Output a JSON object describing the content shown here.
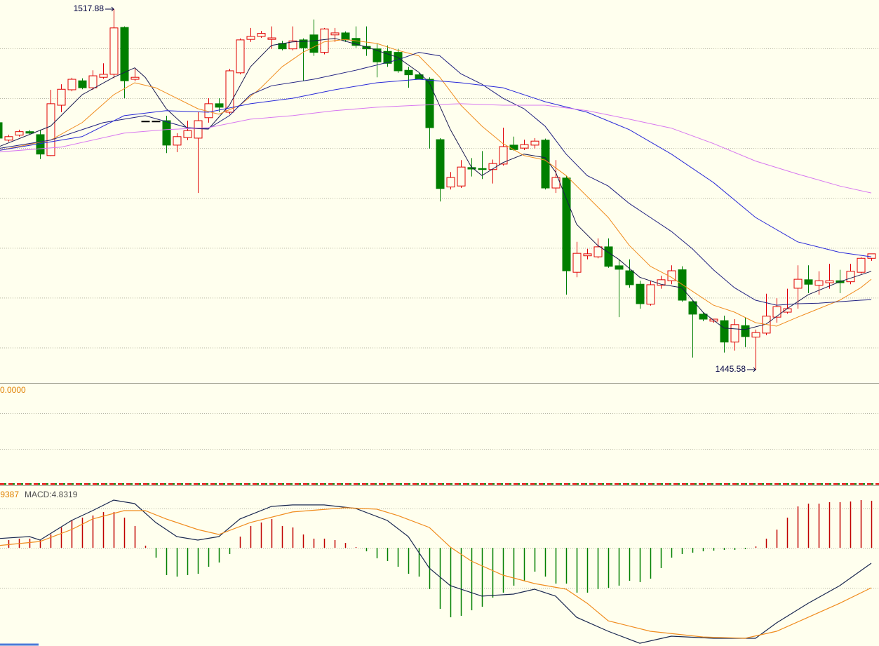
{
  "chart_data": [
    {
      "type": "candlestick",
      "open": [
        1495.1,
        1491.6,
        1492.6,
        1493.3,
        1492.7,
        1488.5,
        1498.6,
        1501.7,
        1503.5,
        1502.1,
        1504.2,
        1504.8,
        1514.2,
        1503.8,
        1495.4,
        1495.4,
        1495.5,
        1490.6,
        1492.1,
        1492.0,
        1496.1,
        1498.9,
        1497.2,
        1505.1,
        1511.8,
        1512.4,
        1511.8,
        1511.0,
        1509.9,
        1511.7,
        1512.7,
        1509.2,
        1512.7,
        1513.1,
        1512.0,
        1510.4,
        1509.9,
        1509.4,
        1509.2,
        1505.6,
        1504.7,
        1503.8,
        1491.7,
        1482.2,
        1482.4,
        1486.1,
        1485.9,
        1485.7,
        1486.8,
        1490.6,
        1490.0,
        1490.6,
        1491.6,
        1482.0,
        1484.0,
        1465.1,
        1468.4,
        1468.2,
        1470.2,
        1466.4,
        1465.4,
        1462.7,
        1458.7,
        1462.5,
        1463.4,
        1465.6,
        1459.2,
        1456.7,
        1455.3,
        1455.4,
        1451.1,
        1454.4,
        1452.1,
        1452.9,
        1456.1,
        1457.1,
        1461.9,
        1463.6,
        1462.5,
        1463.0,
        1463.4,
        1463.2,
        1465.1,
        1467.9
      ],
      "high": [
        1495.8,
        1492.7,
        1493.7,
        1493.6,
        1493.7,
        1501.7,
        1502.8,
        1504.1,
        1504.0,
        1505.6,
        1507.0,
        1517.88,
        1514.4,
        1506.0,
        1495.4,
        1495.4,
        1496.5,
        1493.0,
        1495.5,
        1497.2,
        1500.0,
        1500.0,
        1505.9,
        1512.0,
        1514.1,
        1513.5,
        1514.4,
        1511.5,
        1514.4,
        1512.0,
        1515.8,
        1514.1,
        1514.1,
        1513.4,
        1514.4,
        1514.4,
        1511.0,
        1510.6,
        1509.9,
        1506.3,
        1505.1,
        1504.2,
        1492.0,
        1485.2,
        1487.6,
        1488.0,
        1489.4,
        1487.7,
        1494.1,
        1492.3,
        1491.7,
        1492.0,
        1491.9,
        1487.6,
        1484.5,
        1471.2,
        1469.8,
        1471.9,
        1471.9,
        1467.7,
        1467.7,
        1463.4,
        1463.4,
        1464.4,
        1466.5,
        1466.3,
        1459.5,
        1457.1,
        1455.7,
        1456.4,
        1455.7,
        1456.1,
        1453.6,
        1460.8,
        1459.9,
        1461.8,
        1466.5,
        1466.5,
        1465.3,
        1466.8,
        1465.6,
        1466.8,
        1468.1,
        1468.8
      ],
      "low": [
        1491.6,
        1491.3,
        1492.3,
        1492.8,
        1487.8,
        1488.4,
        1497.2,
        1501.4,
        1501.8,
        1501.7,
        1503.9,
        1504.0,
        1500.0,
        1503.4,
        1495.4,
        1495.4,
        1489.0,
        1489.2,
        1491.6,
        1481.0,
        1495.1,
        1497.2,
        1496.8,
        1504.8,
        1511.3,
        1512.1,
        1509.9,
        1509.6,
        1509.6,
        1503.5,
        1508.5,
        1508.8,
        1511.3,
        1511.3,
        1510.1,
        1508.5,
        1504.2,
        1506.3,
        1505.1,
        1502.1,
        1503.8,
        1489.9,
        1479.3,
        1481.7,
        1482.0,
        1484.3,
        1483.8,
        1482.9,
        1486.5,
        1489.5,
        1489.6,
        1489.9,
        1481.7,
        1481.0,
        1460.6,
        1464.1,
        1467.7,
        1467.9,
        1466.0,
        1456.1,
        1462.0,
        1457.8,
        1458.4,
        1461.8,
        1462.7,
        1459.2,
        1448.0,
        1455.3,
        1455.0,
        1449.0,
        1449.4,
        1450.1,
        1445.58,
        1452.5,
        1455.0,
        1456.8,
        1457.8,
        1460.9,
        1460.6,
        1461.8,
        1460.9,
        1462.7,
        1464.8,
        1467.4
      ],
      "close": [
        1492.0,
        1492.3,
        1493.3,
        1493.0,
        1488.8,
        1498.9,
        1501.8,
        1503.8,
        1502.1,
        1504.5,
        1504.8,
        1514.1,
        1503.5,
        1504.2,
        1495.4,
        1495.4,
        1490.6,
        1492.3,
        1493.5,
        1495.5,
        1498.9,
        1498.2,
        1505.5,
        1511.7,
        1512.4,
        1513.0,
        1512.1,
        1509.9,
        1511.5,
        1510.1,
        1509.2,
        1513.9,
        1513.1,
        1511.7,
        1510.6,
        1509.9,
        1507.3,
        1507.0,
        1505.5,
        1504.7,
        1503.8,
        1494.1,
        1481.9,
        1484.1,
        1486.2,
        1485.8,
        1485.7,
        1486.9,
        1490.3,
        1489.7,
        1490.7,
        1491.4,
        1482.0,
        1484.1,
        1465.4,
        1468.9,
        1468.8,
        1470.2,
        1466.3,
        1465.7,
        1462.6,
        1458.8,
        1462.6,
        1463.6,
        1465.4,
        1459.5,
        1456.7,
        1455.7,
        1455.7,
        1451.1,
        1454.6,
        1452.2,
        1453.0,
        1456.3,
        1458.2,
        1457.8,
        1463.7,
        1462.7,
        1463.4,
        1463.4,
        1463.0,
        1465.3,
        1467.9,
        1468.8
      ],
      "up_color": "#e00000",
      "down_color": "#007f00",
      "flat_color": "#000000",
      "ylim": [
        1442.9,
        1519.7
      ],
      "ygrid": [
        1450,
        1460,
        1470,
        1480,
        1490,
        1500,
        1510
      ],
      "grid": true,
      "high_marker": 11,
      "low_marker": 72,
      "lines": [
        {
          "color": "#1a1a50",
          "x": [
            0,
            5,
            8,
            11,
            13,
            14,
            16,
            18,
            20,
            22,
            24,
            26,
            28,
            30,
            32,
            35,
            38,
            40,
            41,
            43,
            45,
            46,
            48,
            50,
            52,
            53,
            55,
            57,
            59,
            61,
            63,
            65,
            67,
            69,
            71,
            73,
            75,
            77,
            80,
            83
          ],
          "values": [
            1490.2,
            1494.4,
            1500.7,
            1504.2,
            1506.1,
            1504.2,
            1497.9,
            1494.0,
            1493.8,
            1498.6,
            1506.3,
            1510.6,
            1511.3,
            1511.5,
            1512.0,
            1510.3,
            1508.2,
            1505.2,
            1503.1,
            1493.7,
            1486.2,
            1484.5,
            1487.1,
            1488.8,
            1488.1,
            1485.2,
            1474.7,
            1470.5,
            1467.7,
            1464.1,
            1462.7,
            1462.0,
            1457.1,
            1453.9,
            1453.6,
            1454.7,
            1457.8,
            1460.6,
            1463.2,
            1465.3
          ]
        },
        {
          "color": "#f08c1e",
          "x": [
            0,
            5,
            8,
            11,
            13,
            15,
            17,
            19,
            21,
            23,
            25,
            27,
            29,
            31,
            33,
            36,
            38,
            40,
            42,
            44,
            46,
            48,
            50,
            52,
            54,
            56,
            58,
            60,
            62,
            64,
            66,
            68,
            70,
            72,
            74,
            76,
            78,
            80,
            82,
            83
          ],
          "values": [
            1489.5,
            1491.6,
            1495.1,
            1500.7,
            1503.1,
            1502.1,
            1500.0,
            1497.9,
            1496.8,
            1498.6,
            1502.1,
            1506.3,
            1509.2,
            1511.3,
            1511.8,
            1511.0,
            1509.6,
            1508.5,
            1504.2,
            1498.6,
            1494.4,
            1490.9,
            1488.5,
            1487.6,
            1484.5,
            1480.3,
            1476.1,
            1470.5,
            1466.3,
            1464.1,
            1461.3,
            1458.5,
            1457.1,
            1455.0,
            1454.3,
            1456.1,
            1457.8,
            1459.5,
            1462.0,
            1463.7
          ]
        },
        {
          "color": "#202080",
          "x": [
            0,
            5,
            10,
            14,
            18,
            20,
            22,
            24,
            26,
            30,
            34,
            38,
            40,
            42,
            44,
            46,
            48,
            50,
            52,
            54,
            56,
            58,
            60,
            62,
            64,
            66,
            68,
            70,
            72,
            74,
            76,
            78,
            80,
            82,
            83
          ],
          "values": [
            1489.9,
            1491.6,
            1495.1,
            1496.5,
            1494.1,
            1493.9,
            1496.5,
            1500.7,
            1502.5,
            1503.8,
            1505.6,
            1507.7,
            1509.2,
            1508.5,
            1504.9,
            1502.8,
            1500.0,
            1497.9,
            1494.4,
            1488.8,
            1484.5,
            1482.4,
            1478.9,
            1476.1,
            1473.3,
            1469.8,
            1465.6,
            1462.0,
            1459.5,
            1458.5,
            1458.8,
            1458.9,
            1459.2,
            1459.5,
            1459.6
          ]
        },
        {
          "color": "#2828d8",
          "x": [
            0,
            8,
            12,
            16,
            20,
            24,
            28,
            32,
            36,
            40,
            44,
            48,
            52,
            56,
            60,
            64,
            68,
            72,
            76,
            80,
            83
          ],
          "values": [
            1489.5,
            1492.3,
            1496.5,
            1497.5,
            1497.2,
            1498.9,
            1500.0,
            1501.7,
            1503.1,
            1503.8,
            1503.1,
            1502.1,
            1499.3,
            1497.2,
            1493.7,
            1488.8,
            1483.1,
            1476.1,
            1471.2,
            1469.1,
            1468.2
          ]
        },
        {
          "color": "#d878f0",
          "x": [
            0,
            6,
            12,
            16,
            20,
            24,
            28,
            32,
            36,
            40,
            44,
            48,
            52,
            56,
            60,
            64,
            68,
            72,
            76,
            80,
            83
          ],
          "values": [
            1489.2,
            1490.2,
            1493.0,
            1493.7,
            1494.1,
            1495.8,
            1496.5,
            1497.5,
            1498.2,
            1498.6,
            1498.9,
            1498.6,
            1498.6,
            1497.5,
            1495.8,
            1494.0,
            1490.9,
            1487.4,
            1484.8,
            1482.4,
            1481.0
          ]
        }
      ]
    },
    {
      "type": "indicator",
      "label": "0.0000"
    },
    {
      "type": "macd",
      "dif_label": ".9387",
      "macd_label": "MACD:4.8319",
      "values": [
        0.65,
        0.79,
        0.94,
        0.94,
        0.79,
        1.37,
        2.09,
        2.81,
        3.1,
        3.32,
        3.68,
        3.68,
        3.1,
        2.24,
        0.22,
        -1.01,
        -2.81,
        -2.96,
        -2.81,
        -2.67,
        -1.95,
        -1.51,
        -0.65,
        1.15,
        2.24,
        2.6,
        2.96,
        2.24,
        2.09,
        1.37,
        0.94,
        0.94,
        0.79,
        0.5,
        0.07,
        -0.36,
        -1.08,
        -1.37,
        -1.95,
        -2.67,
        -2.96,
        -4.25,
        -6.27,
        -7.14,
        -6.99,
        -6.42,
        -6.06,
        -5.12,
        -4.61,
        -3.89,
        -3.39,
        -2.45,
        -2.96,
        -3.68,
        -3.68,
        -4.61,
        -4.61,
        -4.25,
        -4.11,
        -3.89,
        -3.39,
        -3.53,
        -3.17,
        -2.09,
        -1.01,
        -0.65,
        -0.5,
        -0.36,
        -0.29,
        -0.22,
        -0.22,
        -0.14,
        0.14,
        0.94,
        1.87,
        3.1,
        4.25,
        4.54,
        4.54,
        4.69,
        4.69,
        4.76,
        4.9,
        4.8319
      ],
      "up_color": "#c00000",
      "down_color": "#007f00",
      "ylim": [
        -10.09,
        6.34
      ],
      "ygrid": [
        -4.11,
        0,
        4.04
      ],
      "grid": true,
      "lines": [
        {
          "color": "#1a2850",
          "x": [
            0,
            3,
            4,
            7,
            9,
            11,
            13,
            15,
            17,
            19,
            21,
            23,
            26,
            28,
            31,
            34,
            37,
            39,
            41,
            43,
            46,
            49,
            51,
            53,
            55,
            58,
            61,
            64,
            68,
            72,
            74,
            77,
            80,
            83
          ],
          "values": [
            0.94,
            1.15,
            0.79,
            2.81,
            3.82,
            4.9,
            4.54,
            2.6,
            1.15,
            0.79,
            1.15,
            2.96,
            4.25,
            4.4,
            4.4,
            4.04,
            2.81,
            1.15,
            -2.09,
            -3.89,
            -4.97,
            -4.76,
            -4.25,
            -4.97,
            -7.14,
            -8.58,
            -9.81,
            -9.08,
            -9.3,
            -9.3,
            -7.71,
            -5.7,
            -3.89,
            -1.59
          ]
        },
        {
          "color": "#f08c1e",
          "x": [
            0,
            4,
            7,
            9,
            12,
            14,
            16,
            19,
            21,
            24,
            28,
            33,
            36,
            38,
            41,
            43,
            45,
            48,
            51,
            54,
            56,
            58,
            62,
            67,
            71,
            74,
            77,
            80,
            83
          ],
          "values": [
            0.22,
            0.65,
            1.87,
            2.96,
            3.82,
            3.82,
            2.96,
            1.87,
            1.37,
            2.6,
            3.68,
            4.11,
            3.97,
            3.32,
            2.09,
            0.07,
            -1.37,
            -2.81,
            -3.68,
            -4.25,
            -5.7,
            -7.5,
            -8.58,
            -9.16,
            -9.3,
            -8.58,
            -7.14,
            -5.7,
            -4.11
          ]
        }
      ]
    }
  ]
}
